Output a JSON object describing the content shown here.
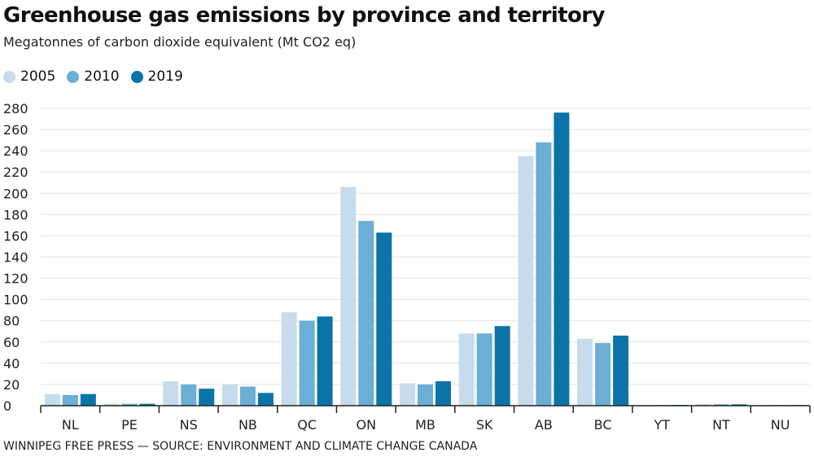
{
  "chart_data": {
    "type": "bar",
    "title": "Greenhouse gas emissions by province and territory",
    "subtitle": "Megatonnes of carbon dioxide equivalent (Mt CO2 eq)",
    "source": "WINNIPEG FREE PRESS — SOURCE: ENVIRONMENT AND CLIMATE CHANGE CANADA",
    "categories": [
      "NL",
      "PE",
      "NS",
      "NB",
      "QC",
      "ON",
      "MB",
      "SK",
      "AB",
      "BC",
      "YT",
      "NT",
      "NU"
    ],
    "series": [
      {
        "name": "2005",
        "color": "#c6dcec",
        "values": [
          11,
          1.9,
          23,
          20,
          88,
          206,
          21,
          68,
          235,
          63,
          0.6,
          1.7,
          0.6
        ]
      },
      {
        "name": "2010",
        "color": "#6baed6",
        "values": [
          10,
          1.8,
          20,
          18,
          80,
          174,
          20,
          68,
          248,
          59,
          0.6,
          1.4,
          0.6
        ]
      },
      {
        "name": "2019",
        "color": "#0a74a8",
        "values": [
          11,
          1.8,
          16,
          12,
          84,
          163,
          23,
          75,
          276,
          66,
          0.7,
          1.3,
          0.6
        ]
      }
    ],
    "ylim": [
      0,
      280
    ],
    "yticks": [
      "0",
      "20",
      "40",
      "60",
      "80",
      "100",
      "120",
      "140",
      "160",
      "180",
      "200",
      "220",
      "240",
      "260",
      "280"
    ],
    "grid": true,
    "legend": "top-left"
  }
}
